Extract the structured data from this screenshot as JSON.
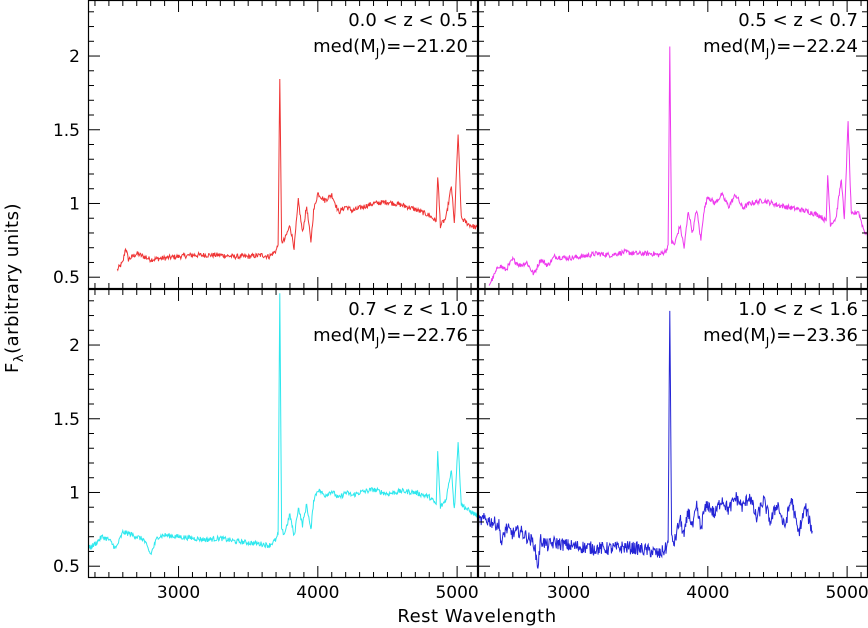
{
  "chart_data": {
    "type": "line",
    "xlabel": "Rest Wavelength",
    "ylabel_main": "F",
    "ylabel_sub": "λ",
    "ylabel_rest": "(arbitrary units)",
    "xlim": [
      2350,
      5150
    ],
    "ylim": [
      0.42,
      2.38
    ],
    "x_ticks": [
      3000,
      4000,
      5000
    ],
    "y_ticks": [
      0.5,
      1,
      1.5,
      2
    ],
    "y_tick_labels": [
      "0.5",
      "1",
      "1.5",
      "2"
    ],
    "panels": [
      {
        "color": "#ef3434",
        "annotation_line1": "0.0 < z < 0.5",
        "annotation_line2_prefix": "med(M",
        "annotation_line2_sub": "J",
        "annotation_line2_suffix": ")=−21.20",
        "x": [
          2560,
          2600,
          2620,
          2640,
          2700,
          2800,
          2900,
          3000,
          3100,
          3200,
          3300,
          3400,
          3500,
          3600,
          3650,
          3700,
          3715,
          3727,
          3740,
          3760,
          3800,
          3830,
          3860,
          3890,
          3920,
          3950,
          3970,
          4000,
          4050,
          4100,
          4150,
          4200,
          4250,
          4300,
          4400,
          4500,
          4600,
          4700,
          4800,
          4850,
          4861,
          4880,
          4920,
          4959,
          4980,
          5007,
          5030,
          5080,
          5150
        ],
        "y": [
          0.55,
          0.6,
          0.7,
          0.62,
          0.66,
          0.62,
          0.63,
          0.64,
          0.65,
          0.65,
          0.65,
          0.64,
          0.64,
          0.65,
          0.64,
          0.68,
          0.72,
          1.86,
          0.74,
          0.75,
          0.85,
          0.7,
          1.02,
          0.8,
          0.98,
          0.74,
          0.95,
          1.07,
          1.02,
          1.06,
          0.94,
          0.98,
          0.95,
          0.97,
          1.0,
          1.01,
          0.99,
          0.96,
          0.92,
          0.88,
          1.19,
          0.85,
          0.9,
          1.12,
          0.86,
          1.47,
          0.9,
          0.86,
          0.83
        ]
      },
      {
        "color": "#ee3aee",
        "annotation_line1": "0.5 < z < 0.7",
        "annotation_line2_prefix": "med(M",
        "annotation_line2_sub": "J",
        "annotation_line2_suffix": ")=−22.24",
        "x": [
          2430,
          2460,
          2500,
          2550,
          2600,
          2650,
          2700,
          2750,
          2800,
          2850,
          2900,
          3000,
          3100,
          3200,
          3300,
          3400,
          3500,
          3600,
          3650,
          3700,
          3715,
          3727,
          3740,
          3760,
          3800,
          3830,
          3860,
          3890,
          3920,
          3950,
          3970,
          4000,
          4050,
          4100,
          4150,
          4200,
          4250,
          4300,
          4400,
          4500,
          4600,
          4700,
          4800,
          4850,
          4861,
          4880,
          4920,
          4959,
          4980,
          5007,
          5030,
          5080,
          5120,
          5150
        ],
        "y": [
          0.45,
          0.5,
          0.58,
          0.55,
          0.62,
          0.58,
          0.6,
          0.52,
          0.62,
          0.58,
          0.64,
          0.63,
          0.64,
          0.66,
          0.65,
          0.67,
          0.66,
          0.66,
          0.65,
          0.68,
          0.72,
          2.05,
          0.74,
          0.72,
          0.85,
          0.7,
          0.95,
          0.8,
          0.96,
          0.75,
          0.94,
          1.05,
          1.0,
          1.06,
          0.98,
          1.06,
          0.97,
          1.0,
          1.02,
          0.99,
          0.97,
          0.95,
          0.92,
          0.88,
          1.19,
          0.86,
          0.9,
          1.17,
          0.88,
          1.55,
          0.92,
          0.95,
          0.82,
          0.78
        ]
      },
      {
        "color": "#2ee8ee",
        "annotation_line1": "0.7 < z < 1.0",
        "annotation_line2_prefix": "med(M",
        "annotation_line2_sub": "J",
        "annotation_line2_suffix": ")=−22.76",
        "x": [
          2350,
          2400,
          2450,
          2500,
          2550,
          2600,
          2650,
          2700,
          2750,
          2800,
          2850,
          2900,
          3000,
          3100,
          3200,
          3300,
          3400,
          3500,
          3600,
          3650,
          3700,
          3715,
          3727,
          3740,
          3760,
          3800,
          3830,
          3860,
          3890,
          3920,
          3950,
          3970,
          4000,
          4050,
          4100,
          4150,
          4200,
          4250,
          4300,
          4400,
          4500,
          4600,
          4700,
          4800,
          4850,
          4861,
          4880,
          4920,
          4959,
          4980,
          5007,
          5030,
          5080,
          5150
        ],
        "y": [
          0.62,
          0.65,
          0.7,
          0.68,
          0.62,
          0.73,
          0.72,
          0.7,
          0.68,
          0.58,
          0.7,
          0.71,
          0.7,
          0.69,
          0.68,
          0.69,
          0.67,
          0.66,
          0.65,
          0.64,
          0.68,
          0.72,
          2.35,
          0.74,
          0.72,
          0.85,
          0.7,
          0.9,
          0.78,
          0.92,
          0.74,
          0.95,
          1.02,
          0.98,
          1.01,
          0.96,
          1.0,
          0.98,
          1.0,
          1.02,
          0.99,
          1.01,
          1.0,
          0.97,
          0.92,
          1.27,
          0.9,
          0.95,
          1.16,
          0.88,
          1.34,
          0.92,
          0.88,
          0.84
        ]
      },
      {
        "color": "#2424d6",
        "annotation_line1": "1.0 < z < 1.6",
        "annotation_line2_prefix": "med(M",
        "annotation_line2_sub": "J",
        "annotation_line2_suffix": ")=−23.36",
        "x": [
          2350,
          2400,
          2450,
          2500,
          2520,
          2550,
          2600,
          2650,
          2700,
          2750,
          2780,
          2800,
          2850,
          2900,
          3000,
          3100,
          3200,
          3300,
          3400,
          3500,
          3600,
          3650,
          3700,
          3715,
          3727,
          3740,
          3760,
          3800,
          3830,
          3860,
          3890,
          3920,
          3950,
          3970,
          4000,
          4050,
          4100,
          4150,
          4200,
          4250,
          4300,
          4350,
          4400,
          4450,
          4500,
          4550,
          4600,
          4650,
          4700,
          4750
        ],
        "y": [
          0.8,
          0.82,
          0.8,
          0.78,
          0.65,
          0.76,
          0.72,
          0.74,
          0.7,
          0.66,
          0.5,
          0.68,
          0.64,
          0.66,
          0.64,
          0.63,
          0.62,
          0.62,
          0.63,
          0.62,
          0.6,
          0.58,
          0.62,
          0.66,
          2.27,
          0.68,
          0.66,
          0.82,
          0.7,
          0.88,
          0.76,
          0.9,
          0.75,
          0.86,
          0.92,
          0.85,
          0.96,
          0.88,
          0.97,
          0.9,
          0.98,
          0.82,
          0.95,
          0.8,
          0.93,
          0.76,
          0.96,
          0.72,
          0.9,
          0.74
        ]
      }
    ]
  }
}
